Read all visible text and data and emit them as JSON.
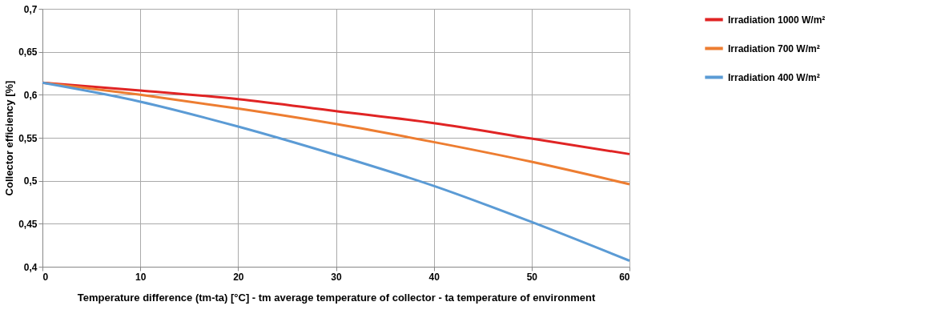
{
  "chart_data": {
    "type": "line",
    "xlabel": "Temperature difference (tm-ta) [°C] - tm average temperature of collector - ta temperature of environment",
    "ylabel": "Collector efficiency [%]",
    "x": [
      0,
      10,
      20,
      30,
      40,
      50,
      60
    ],
    "series": [
      {
        "name": "Irradiation 1000 W/m²",
        "color": "#e02424",
        "values": [
          0.614,
          0.605,
          0.595,
          0.581,
          0.567,
          0.549,
          0.531
        ]
      },
      {
        "name": "Irradiation 700 W/m²",
        "color": "#ed7d31",
        "values": [
          0.614,
          0.6,
          0.584,
          0.566,
          0.545,
          0.522,
          0.496
        ]
      },
      {
        "name": "Irradiation 400 W/m²",
        "color": "#5b9bd5",
        "values": [
          0.614,
          0.592,
          0.563,
          0.53,
          0.494,
          0.452,
          0.407
        ]
      }
    ],
    "xlim": [
      0,
      60
    ],
    "xticks": [
      0,
      10,
      20,
      30,
      40,
      50,
      60
    ],
    "ylim": [
      0.4,
      0.7
    ],
    "yticks": [
      {
        "value": 0.4,
        "label": "0,4"
      },
      {
        "value": 0.45,
        "label": "0,45"
      },
      {
        "value": 0.5,
        "label": "0,5"
      },
      {
        "value": 0.55,
        "label": "0,55"
      },
      {
        "value": 0.6,
        "label": "0,6"
      },
      {
        "value": 0.65,
        "label": "0,65"
      },
      {
        "value": 0.7,
        "label": "0,7"
      }
    ],
    "grid": true,
    "legend": "top right",
    "marker": "none",
    "line_style": "solid"
  }
}
